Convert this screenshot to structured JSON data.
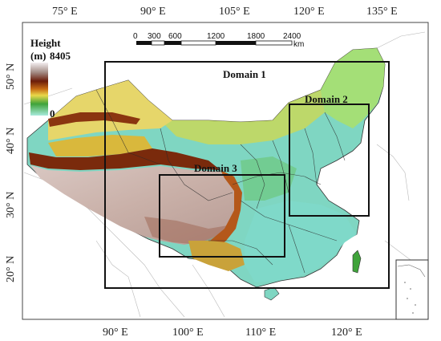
{
  "map": {
    "top_lon_labels": [
      "75° E",
      "90° E",
      "105° E",
      "120° E",
      "135° E"
    ],
    "bottom_lon_labels": [
      "90° E",
      "100° E",
      "110° E",
      "120° E"
    ],
    "lat_labels": [
      "50° N",
      "40° N",
      "30° N",
      "20° N"
    ],
    "legend": {
      "title": "Height",
      "unit": "(m)",
      "max": "8405",
      "min": "0"
    },
    "scalebar": {
      "ticks": [
        "0",
        "300",
        "600",
        "1200",
        "1800",
        "2400"
      ],
      "unit": "km"
    },
    "domains": [
      {
        "label": "Domain 1"
      },
      {
        "label": "Domain 2"
      },
      {
        "label": "Domain 3"
      }
    ],
    "colors": {
      "low": "#9fe3d8",
      "mid_green": "#3fa33a",
      "yellow": "#e9d84a",
      "brown": "#7a2a0c",
      "high": "#efe9ec"
    }
  }
}
